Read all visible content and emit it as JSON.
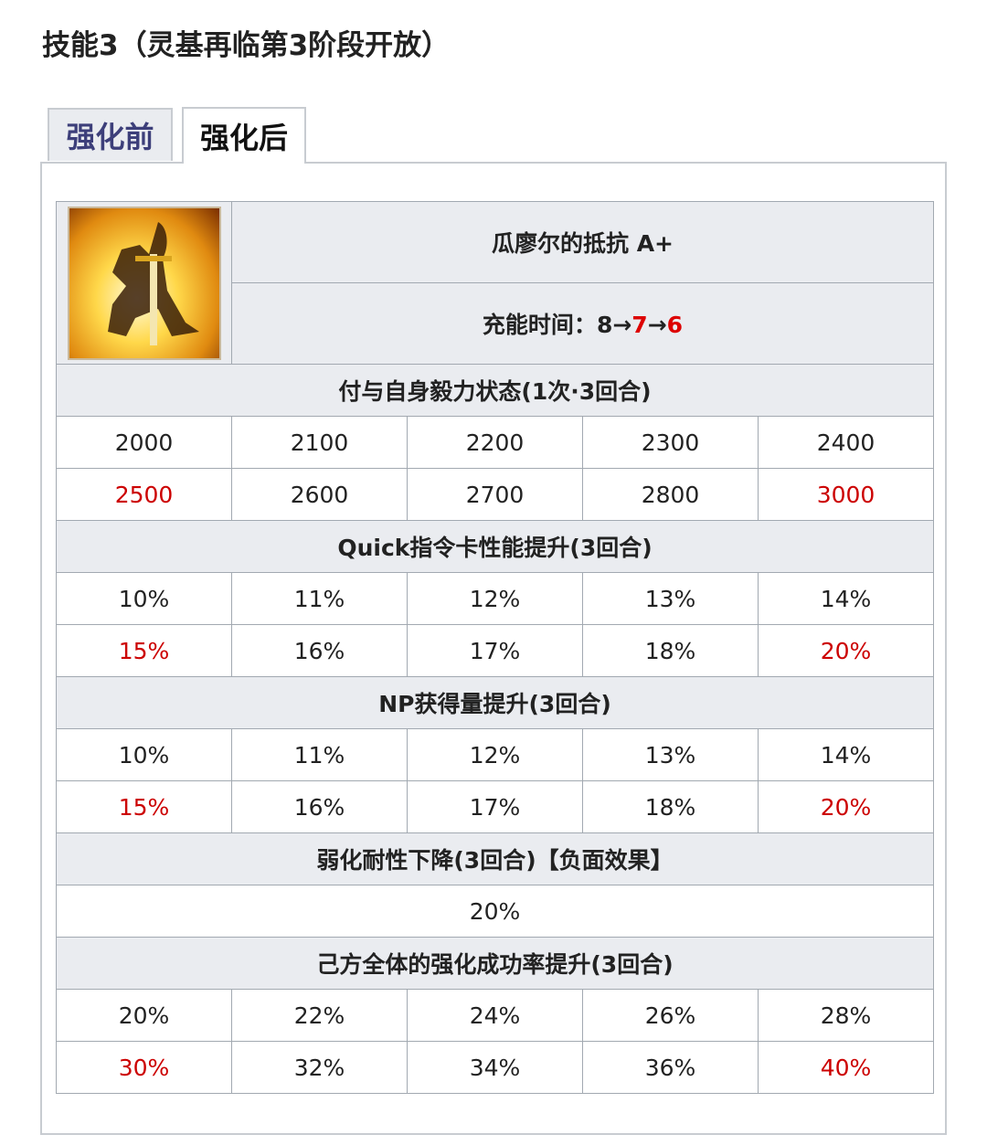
{
  "title": "技能3（灵基再临第3阶段开放）",
  "tabs": [
    {
      "label": "强化前"
    },
    {
      "label": "强化后"
    }
  ],
  "skill": {
    "name": "瓜廖尔的抵抗 A+",
    "cd_label": "充能时间：",
    "cd_base": "8",
    "arrow": "→",
    "cd_1": "7",
    "cd_2": "6",
    "icon": "kneeling-knight-sword-icon"
  },
  "colors": {
    "highlight": "#cc0000",
    "header_bg": "#eaecf0"
  },
  "sections": [
    {
      "header": "付与自身毅力状态(1次·3回合)",
      "rows": [
        [
          "2000",
          "2100",
          "2200",
          "2300",
          "2400"
        ],
        [
          "2500",
          "2600",
          "2700",
          "2800",
          "3000"
        ]
      ]
    },
    {
      "header": "Quick指令卡性能提升(3回合)",
      "rows": [
        [
          "10%",
          "11%",
          "12%",
          "13%",
          "14%"
        ],
        [
          "15%",
          "16%",
          "17%",
          "18%",
          "20%"
        ]
      ]
    },
    {
      "header": "NP获得量提升(3回合)",
      "rows": [
        [
          "10%",
          "11%",
          "12%",
          "13%",
          "14%"
        ],
        [
          "15%",
          "16%",
          "17%",
          "18%",
          "20%"
        ]
      ]
    },
    {
      "header": "弱化耐性下降(3回合)【负面效果】",
      "single": "20%"
    },
    {
      "header": "己方全体的强化成功率提升(3回合)",
      "rows": [
        [
          "20%",
          "22%",
          "24%",
          "26%",
          "28%"
        ],
        [
          "30%",
          "32%",
          "34%",
          "36%",
          "40%"
        ]
      ]
    }
  ]
}
